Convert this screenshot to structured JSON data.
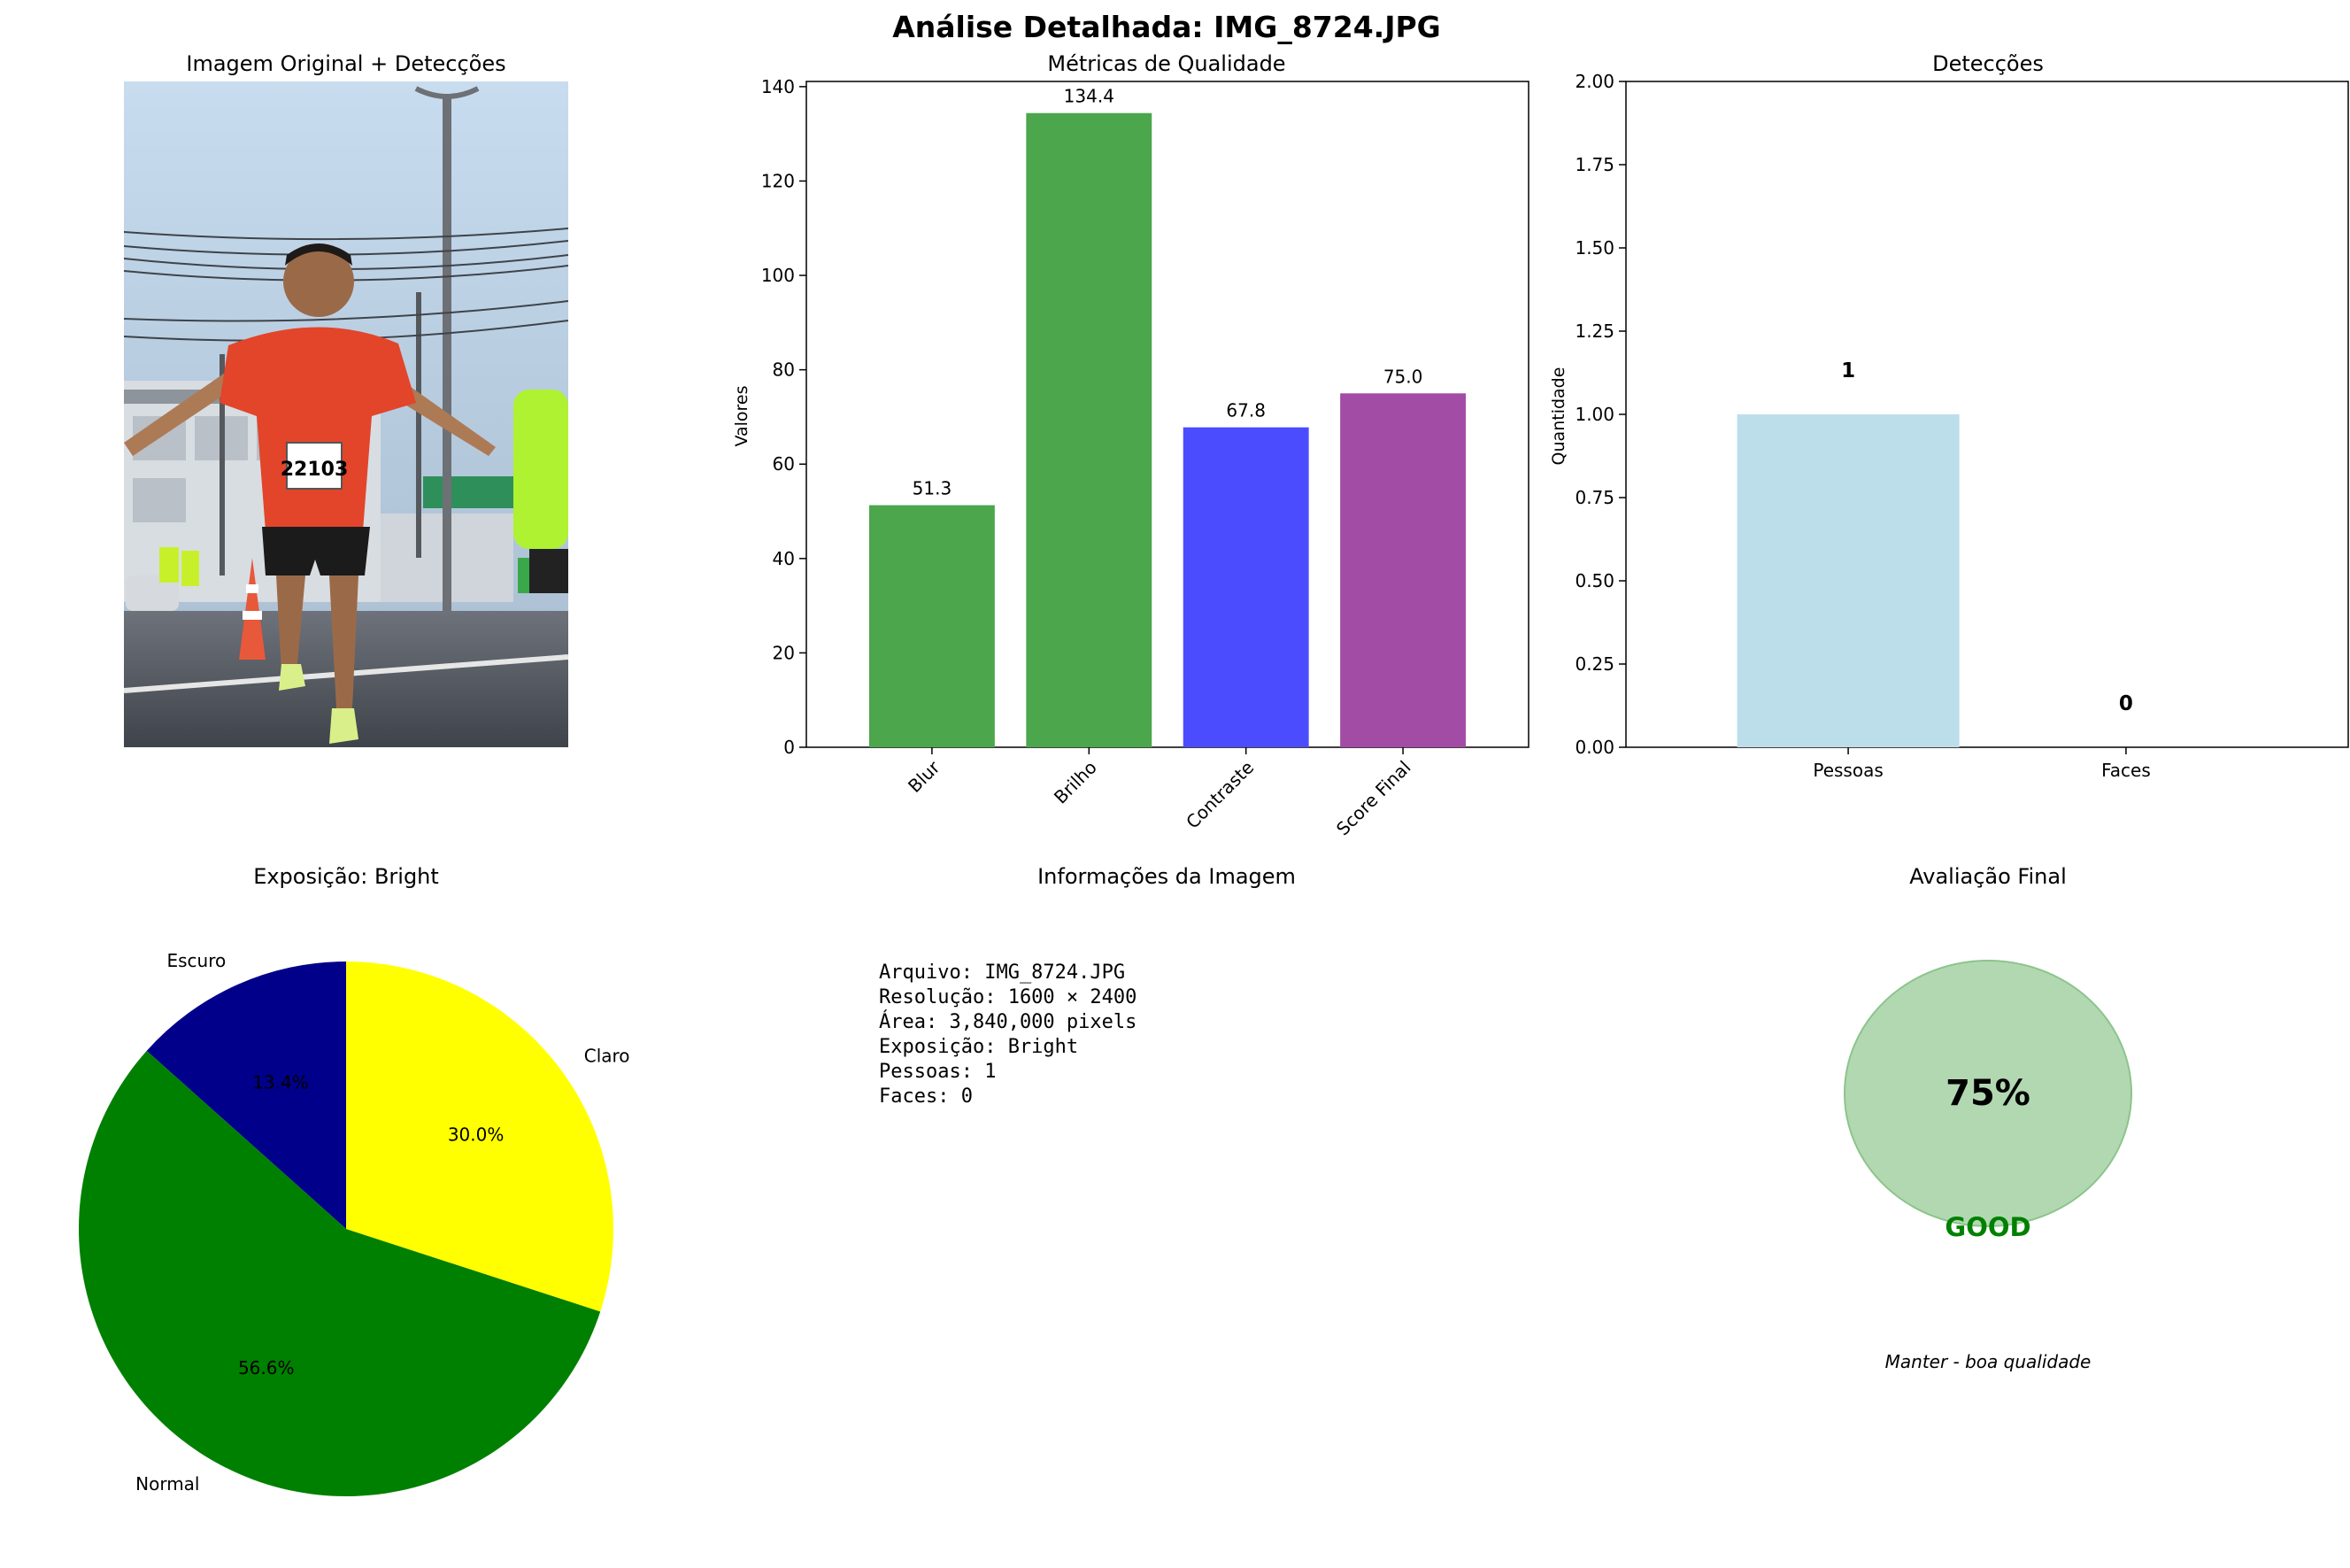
{
  "figure_title": "Análise Detalhada: IMG_8724.JPG",
  "image_panel": {
    "title": "Imagem Original + Detecções",
    "bib_number": "22103"
  },
  "colors": {
    "green": "#4ca64c",
    "blue": "#4c4cff",
    "purple": "#a34ca6",
    "light_blue": "#bcdeea",
    "pie_dark": "#00008b",
    "pie_normal": "#008000",
    "pie_bright": "#ffff00",
    "gauge_fill": "#b2d8b2",
    "gauge_edge": "#8cc48c",
    "good_text": "#008000"
  },
  "info_panel": {
    "title": "Informações da Imagem",
    "lines": [
      "Arquivo: IMG_8724.JPG",
      "Resolução: 1600 × 2400",
      "Área: 3,840,000 pixels",
      "Exposição: Bright",
      "Pessoas: 1",
      "Faces: 0"
    ]
  },
  "final_panel": {
    "title": "Avaliação Final",
    "score_text": "75%",
    "score_value": 75,
    "grade": "GOOD",
    "recommendation": "Manter - boa qualidade"
  },
  "chart_data": [
    {
      "id": "quality",
      "type": "bar",
      "title": "Métricas de Qualidade",
      "xlabel": "",
      "ylabel": "Valores",
      "categories": [
        "Blur",
        "Brilho",
        "Contraste",
        "Score Final"
      ],
      "values": [
        51.3,
        134.4,
        67.8,
        75.0
      ],
      "value_labels": [
        "51.3",
        "134.4",
        "67.8",
        "75.0"
      ],
      "bar_colors": [
        "green",
        "green",
        "blue",
        "purple"
      ],
      "ylim": [
        0,
        141.1
      ],
      "yticks": [
        0,
        20,
        40,
        60,
        80,
        100,
        120,
        140
      ],
      "ytick_labels": [
        "0",
        "20",
        "40",
        "60",
        "80",
        "100",
        "120",
        "140"
      ],
      "xtick_rotation": 45,
      "grid": false
    },
    {
      "id": "detections",
      "type": "bar",
      "title": "Detecções",
      "xlabel": "",
      "ylabel": "Quantidade",
      "categories": [
        "Pessoas",
        "Faces"
      ],
      "values": [
        1,
        0
      ],
      "value_labels": [
        "1",
        "0"
      ],
      "ylim": [
        0,
        2
      ],
      "yticks": [
        0,
        0.25,
        0.5,
        0.75,
        1.0,
        1.25,
        1.5,
        1.75,
        2.0
      ],
      "ytick_labels": [
        "0.00",
        "0.25",
        "0.50",
        "0.75",
        "1.00",
        "1.25",
        "1.50",
        "1.75",
        "2.00"
      ],
      "grid": false
    },
    {
      "id": "exposure",
      "type": "pie",
      "title": "Exposição: Bright",
      "labels": [
        "Escuro",
        "Normal",
        "Claro"
      ],
      "values": [
        13.4,
        56.6,
        30.0
      ],
      "pct_labels": [
        "13.4%",
        "56.6%",
        "30.0%"
      ],
      "slice_colors": [
        "pie_dark",
        "pie_normal",
        "pie_bright"
      ],
      "startangle": 90
    }
  ]
}
